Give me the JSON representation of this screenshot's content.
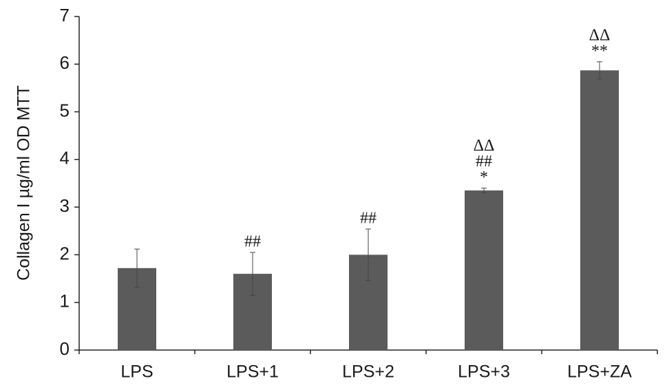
{
  "chart_data": {
    "type": "bar",
    "y_label": "Collagen I µg/ml OD MTT",
    "categories": [
      "LPS",
      "LPS+1",
      "LPS+2",
      "LPS+3",
      "LPS+ZA"
    ],
    "values": [
      1.72,
      1.6,
      2.0,
      3.35,
      5.87
    ],
    "errors": [
      0.4,
      0.45,
      0.54,
      0.05,
      0.18
    ],
    "annotations": [
      [],
      [
        "##"
      ],
      [
        "##"
      ],
      [
        "ΔΔ",
        "##",
        "*"
      ],
      [
        "ΔΔ",
        "**"
      ]
    ],
    "color": "#5b5b5b",
    "ylim": [
      0,
      7
    ],
    "yticks": [
      0,
      1,
      2,
      3,
      4,
      5,
      6,
      7
    ]
  }
}
